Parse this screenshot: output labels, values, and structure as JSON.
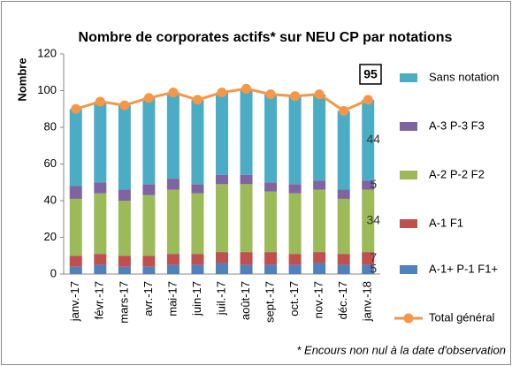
{
  "chart_data": {
    "type": "bar",
    "stacked": true,
    "title": "Nombre de corporates actifs* sur NEU CP par notations",
    "y_label": "Nombre",
    "footnote": "* Encours non nul à la date d'observation",
    "categories": [
      "janv.-17",
      "févr.-17",
      "mars-17",
      "avr.-17",
      "mai-17",
      "juin-17",
      "juil.-17",
      "août-17",
      "sept.-17",
      "oct.-17",
      "nov.-17",
      "déc.-17",
      "janv.-18"
    ],
    "series": [
      {
        "name": "A-1+ P-1 F1+",
        "color": "#4f81bd",
        "values": [
          4,
          5,
          4,
          4,
          5,
          5,
          6,
          5,
          5,
          5,
          6,
          5,
          5
        ]
      },
      {
        "name": "A-1 F1",
        "color": "#c0504d",
        "values": [
          6,
          6,
          6,
          6,
          6,
          6,
          6,
          7,
          7,
          6,
          6,
          6,
          7
        ]
      },
      {
        "name": "A-2 P-2 F2",
        "color": "#9bbb59",
        "values": [
          31,
          33,
          30,
          33,
          35,
          33,
          37,
          37,
          33,
          33,
          34,
          30,
          34
        ]
      },
      {
        "name": "A-3 P-3 F3",
        "color": "#8064a2",
        "values": [
          7,
          6,
          6,
          6,
          6,
          5,
          5,
          5,
          5,
          5,
          5,
          5,
          5
        ]
      },
      {
        "name": "Sans notation",
        "color": "#4bacc6",
        "values": [
          42,
          44,
          46,
          47,
          47,
          46,
          45,
          47,
          48,
          48,
          47,
          43,
          44
        ]
      },
      {
        "name": "Total général",
        "color": "#f79646",
        "type": "line",
        "values": [
          90,
          94,
          92,
          96,
          99,
          95,
          99,
          101,
          98,
          97,
          98,
          89,
          95
        ]
      }
    ],
    "ylim": [
      0,
      120
    ],
    "yticks": [
      0,
      20,
      40,
      60,
      80,
      100,
      120
    ],
    "grid": false
  }
}
